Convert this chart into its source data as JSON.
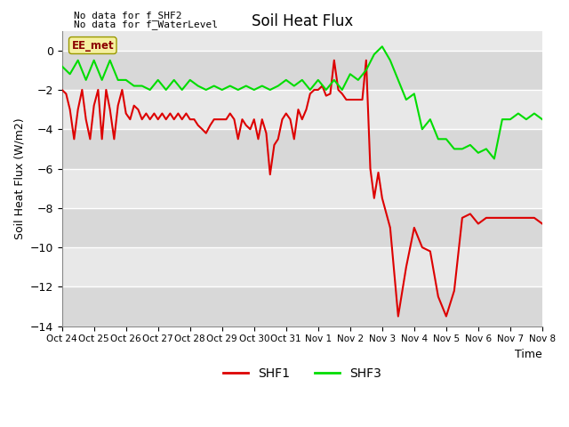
{
  "title": "Soil Heat Flux",
  "ylabel": "Soil Heat Flux (W/m2)",
  "xlabel": "Time",
  "top_text_line1": "No data for f_SHF2",
  "top_text_line2": "No data for f_WaterLevel",
  "annotation_box": "EE_met",
  "ylim": [
    -14,
    1
  ],
  "yticks": [
    0,
    -2,
    -4,
    -6,
    -8,
    -10,
    -12,
    -14
  ],
  "xtick_labels": [
    "Oct 24",
    "Oct 25",
    "Oct 26",
    "Oct 27",
    "Oct 28",
    "Oct 29",
    "Oct 30",
    "Oct 31",
    "Nov 1",
    "Nov 2",
    "Nov 3",
    "Nov 4",
    "Nov 5",
    "Nov 6",
    "Nov 7",
    "Nov 8"
  ],
  "background_color": "#ffffff",
  "plot_bg_bands": [
    "#d8d8d8",
    "#e8e8e8"
  ],
  "grid_color": "#ffffff",
  "shf1_color": "#dd0000",
  "shf3_color": "#00dd00",
  "shf1_x": [
    0,
    0.13,
    0.25,
    0.38,
    0.5,
    0.63,
    0.75,
    0.88,
    1.0,
    1.13,
    1.25,
    1.38,
    1.5,
    1.63,
    1.75,
    1.88,
    2.0,
    2.13,
    2.25,
    2.38,
    2.5,
    2.63,
    2.75,
    2.88,
    3.0,
    3.13,
    3.25,
    3.38,
    3.5,
    3.63,
    3.75,
    3.88,
    4.0,
    4.13,
    4.25,
    4.38,
    4.5,
    4.63,
    4.75,
    4.88,
    5.0,
    5.13,
    5.25,
    5.38,
    5.5,
    5.63,
    5.75,
    5.88,
    6.0,
    6.13,
    6.25,
    6.38,
    6.5,
    6.63,
    6.75,
    6.88,
    7.0,
    7.13,
    7.25,
    7.38,
    7.5,
    7.63,
    7.75,
    7.88,
    8.0,
    8.13,
    8.25,
    8.38,
    8.5,
    8.63,
    8.75,
    8.88,
    9.0,
    9.13,
    9.25,
    9.38,
    9.5,
    9.63,
    9.75,
    9.88,
    10.0,
    10.25,
    10.5,
    10.75,
    11.0,
    11.25,
    11.5,
    11.75,
    12.0,
    12.25,
    12.5,
    12.75,
    13.0,
    13.25,
    13.5,
    13.75,
    14.0,
    14.25,
    14.5,
    14.75,
    15.0
  ],
  "shf1_y": [
    -2.0,
    -2.2,
    -3.0,
    -4.5,
    -3.0,
    -2.0,
    -3.5,
    -4.5,
    -2.8,
    -2.0,
    -4.5,
    -2.0,
    -3.0,
    -4.5,
    -2.8,
    -2.0,
    -3.2,
    -3.5,
    -2.8,
    -3.0,
    -3.5,
    -3.2,
    -3.5,
    -3.2,
    -3.5,
    -3.2,
    -3.5,
    -3.2,
    -3.5,
    -3.2,
    -3.5,
    -3.2,
    -3.5,
    -3.5,
    -3.8,
    -4.0,
    -4.2,
    -3.8,
    -3.5,
    -3.5,
    -3.5,
    -3.5,
    -3.2,
    -3.5,
    -4.5,
    -3.5,
    -3.8,
    -4.0,
    -3.5,
    -4.5,
    -3.5,
    -4.2,
    -6.3,
    -4.8,
    -4.5,
    -3.5,
    -3.2,
    -3.5,
    -4.5,
    -3.0,
    -3.5,
    -3.0,
    -2.2,
    -2.0,
    -2.0,
    -1.8,
    -2.3,
    -2.2,
    -0.5,
    -2.0,
    -2.2,
    -2.5,
    -2.5,
    -2.5,
    -2.5,
    -2.5,
    -0.5,
    -6.0,
    -7.5,
    -6.2,
    -7.5,
    -9.0,
    -13.5,
    -11.0,
    -9.0,
    -10.0,
    -10.2,
    -12.5,
    -13.5,
    -12.2,
    -8.5,
    -8.3,
    -8.8,
    -8.5,
    -8.5,
    -8.5,
    -8.5,
    -8.5,
    -8.5,
    -8.5,
    -8.8
  ],
  "shf3_x": [
    0,
    0.25,
    0.5,
    0.75,
    1.0,
    1.25,
    1.5,
    1.75,
    2.0,
    2.25,
    2.5,
    2.75,
    3.0,
    3.25,
    3.5,
    3.75,
    4.0,
    4.25,
    4.5,
    4.75,
    5.0,
    5.25,
    5.5,
    5.75,
    6.0,
    6.25,
    6.5,
    6.75,
    7.0,
    7.25,
    7.5,
    7.75,
    8.0,
    8.25,
    8.5,
    8.75,
    9.0,
    9.25,
    9.5,
    9.75,
    10.0,
    10.25,
    10.5,
    10.75,
    11.0,
    11.25,
    11.5,
    11.75,
    12.0,
    12.25,
    12.5,
    12.75,
    13.0,
    13.25,
    13.5,
    13.75,
    14.0,
    14.25,
    14.5,
    14.75,
    15.0
  ],
  "shf3_y": [
    -0.8,
    -1.2,
    -0.5,
    -1.5,
    -0.5,
    -1.5,
    -0.5,
    -1.5,
    -1.5,
    -1.8,
    -1.8,
    -2.0,
    -1.5,
    -2.0,
    -1.5,
    -2.0,
    -1.5,
    -1.8,
    -2.0,
    -1.8,
    -2.0,
    -1.8,
    -2.0,
    -1.8,
    -2.0,
    -1.8,
    -2.0,
    -1.8,
    -1.5,
    -1.8,
    -1.5,
    -2.0,
    -1.5,
    -2.0,
    -1.5,
    -2.0,
    -1.2,
    -1.5,
    -1.0,
    -0.2,
    0.2,
    -0.5,
    -1.5,
    -2.5,
    -2.2,
    -4.0,
    -3.5,
    -4.5,
    -4.5,
    -5.0,
    -5.0,
    -4.8,
    -5.2,
    -5.0,
    -5.5,
    -3.5,
    -3.5,
    -3.2,
    -3.5,
    -3.2,
    -3.5
  ]
}
